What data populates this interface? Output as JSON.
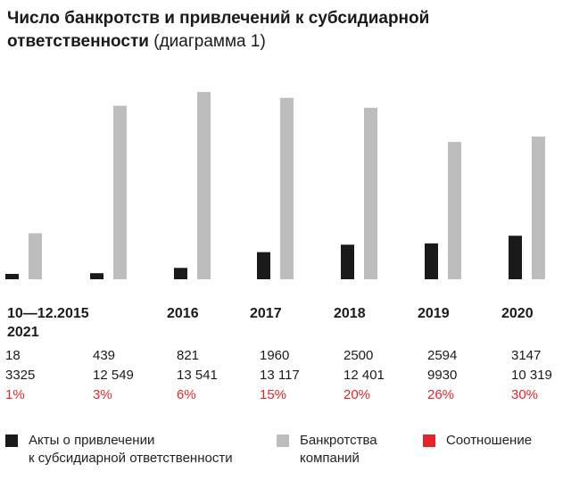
{
  "title": {
    "bold": "Число банкротств и привлечений к субсидиарной ответственности",
    "normal": "(диаграмма 1)"
  },
  "colors": {
    "acts": "#1a1a1a",
    "bankruptcies": "#bdbdbd",
    "ratio": "#e3242b"
  },
  "chart_data": {
    "type": "bar",
    "categories": [
      "10—12.2015",
      "2016",
      "2017",
      "2018",
      "2019",
      "2020",
      "2021"
    ],
    "series": [
      {
        "name": "Акты о привлечении к субсидиарной ответственности",
        "values": [
          18,
          439,
          821,
          1960,
          2500,
          2594,
          3147
        ],
        "labels": [
          "18",
          "439",
          "821",
          "1960",
          "2500",
          "2594",
          "3147"
        ]
      },
      {
        "name": "Банкротства компаний",
        "values": [
          3325,
          12549,
          13541,
          13117,
          12401,
          9930,
          10319
        ],
        "labels": [
          "3325",
          "12 549",
          "13 541",
          "13 117",
          "12 401",
          "9930",
          "10 319"
        ]
      },
      {
        "name": "Соотношение",
        "values": [
          1,
          3,
          6,
          15,
          20,
          26,
          30
        ],
        "labels": [
          "1%",
          "3%",
          "6%",
          "15%",
          "20%",
          "26%",
          "30%"
        ]
      }
    ],
    "ylim": [
      0,
      14000
    ],
    "grid": false
  },
  "legend": {
    "acts_line1": "Акты о привлечении",
    "acts_line2": "к субсидиарной ответственности",
    "bank_line1": "Банкротства",
    "bank_line2": "компаний",
    "ratio": "Соотношение"
  }
}
